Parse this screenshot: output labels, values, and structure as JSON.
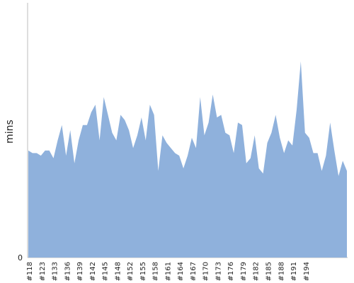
{
  "chart_data": {
    "type": "area",
    "ylabel": "mins",
    "y_tick_labels": [
      "0"
    ],
    "ylim": [
      0,
      100
    ],
    "color": "#8fb1dc",
    "x_tick_labels": [
      "#118",
      "#123",
      "#133",
      "#136",
      "#139",
      "#142",
      "#145",
      "#148",
      "#152",
      "#155",
      "#158",
      "#161",
      "#164",
      "#167",
      "#170",
      "#173",
      "#176",
      "#179",
      "#182",
      "#185",
      "#188",
      "#191",
      "#194"
    ],
    "tick_every": 3,
    "values": [
      42,
      41,
      41,
      40,
      42,
      42,
      39,
      46,
      52,
      40,
      50,
      37,
      46,
      52,
      52,
      57,
      60,
      46,
      63,
      56,
      49,
      46,
      56,
      54,
      50,
      43,
      48,
      55,
      46,
      60,
      56,
      34,
      48,
      45,
      43,
      41,
      40,
      35,
      40,
      47,
      43,
      63,
      48,
      53,
      64,
      55,
      56,
      49,
      48,
      41,
      53,
      52,
      37,
      39,
      48,
      35,
      33,
      45,
      49,
      56,
      47,
      41,
      46,
      44,
      58,
      77,
      49,
      47,
      41,
      41,
      34,
      40,
      53,
      42,
      32,
      38,
      34,
      35,
      56,
      65,
      63,
      42,
      46,
      48,
      43,
      38,
      38,
      47,
      40,
      38,
      39,
      47,
      44,
      37,
      41,
      33,
      31,
      26,
      41,
      34,
      33,
      43,
      32,
      41,
      40,
      28,
      30,
      45,
      38,
      40,
      45,
      38,
      33,
      40,
      31,
      39,
      50,
      36,
      44,
      39,
      37,
      50,
      44,
      43,
      35,
      34,
      31,
      37,
      33,
      36,
      30,
      41,
      38,
      30,
      30,
      31,
      41,
      36,
      33,
      42,
      31,
      41,
      37,
      40,
      40,
      35,
      43,
      31,
      34,
      37,
      37,
      38,
      39,
      40,
      45,
      38,
      37,
      43,
      44,
      40,
      33,
      37,
      45,
      40,
      41,
      40,
      36,
      40,
      39,
      40,
      37,
      36,
      31,
      44,
      36,
      33,
      35,
      34,
      33,
      44,
      37,
      41,
      37,
      27,
      42,
      32,
      35,
      33,
      36,
      29,
      40,
      30,
      31,
      37,
      39,
      40,
      37,
      43,
      32,
      40,
      33,
      36,
      39,
      27,
      32,
      36,
      36,
      28,
      41,
      37,
      42,
      38,
      37,
      41,
      38,
      31,
      33,
      42,
      35,
      38,
      37,
      31,
      27,
      42,
      32,
      31,
      34,
      38,
      32,
      40,
      36,
      30,
      35,
      42,
      26,
      29,
      41,
      28,
      32,
      37,
      30,
      35,
      40,
      41,
      40,
      37,
      37,
      44,
      36,
      33,
      38,
      28,
      33,
      35,
      33,
      34,
      39,
      32,
      42,
      33,
      31,
      38,
      40,
      28,
      36,
      31,
      35,
      36,
      37,
      37,
      29,
      32,
      31,
      30,
      33,
      30,
      35,
      27,
      39,
      31,
      30,
      34,
      38,
      28,
      36,
      34,
      31,
      39,
      32,
      37,
      34,
      34,
      31,
      33,
      37,
      34,
      31,
      38,
      36,
      37,
      33,
      27,
      37,
      32,
      35,
      30,
      40,
      31,
      36,
      37,
      33,
      33,
      38,
      32,
      34,
      37,
      31,
      34,
      38,
      30,
      35,
      40,
      33,
      30,
      35,
      40,
      33,
      37,
      37,
      32,
      37,
      36,
      42,
      32,
      37,
      34,
      32,
      41,
      35,
      38,
      35,
      30,
      33,
      38,
      32,
      33,
      36,
      39,
      30,
      38,
      34,
      32,
      38,
      34,
      37,
      37,
      32,
      40,
      33,
      38,
      34,
      32,
      36,
      40,
      33,
      40,
      38,
      36,
      42,
      41,
      35,
      37,
      41,
      36,
      38,
      44,
      41,
      42,
      36,
      40,
      44,
      38,
      40,
      43,
      37,
      42,
      47,
      37,
      43,
      37,
      39,
      43,
      39,
      43,
      39,
      40,
      44,
      38,
      36,
      43,
      40,
      41,
      43,
      42,
      35,
      38,
      41,
      38,
      40,
      44,
      34,
      38,
      42,
      37,
      40,
      37,
      40,
      39,
      39,
      38,
      41,
      37,
      36,
      39,
      38,
      35,
      44,
      40,
      35,
      40,
      42,
      40,
      38,
      38,
      44,
      43,
      37,
      42,
      45,
      38,
      42,
      40,
      44,
      36,
      40,
      37,
      44,
      42,
      41,
      38,
      36,
      41,
      38,
      39,
      43,
      38,
      35,
      40,
      38,
      41,
      37,
      36,
      40,
      39,
      41,
      42,
      37,
      39,
      36,
      41,
      39,
      38,
      44,
      37,
      36,
      39,
      42,
      40,
      37,
      35,
      40,
      36,
      41,
      38,
      39
    ]
  }
}
